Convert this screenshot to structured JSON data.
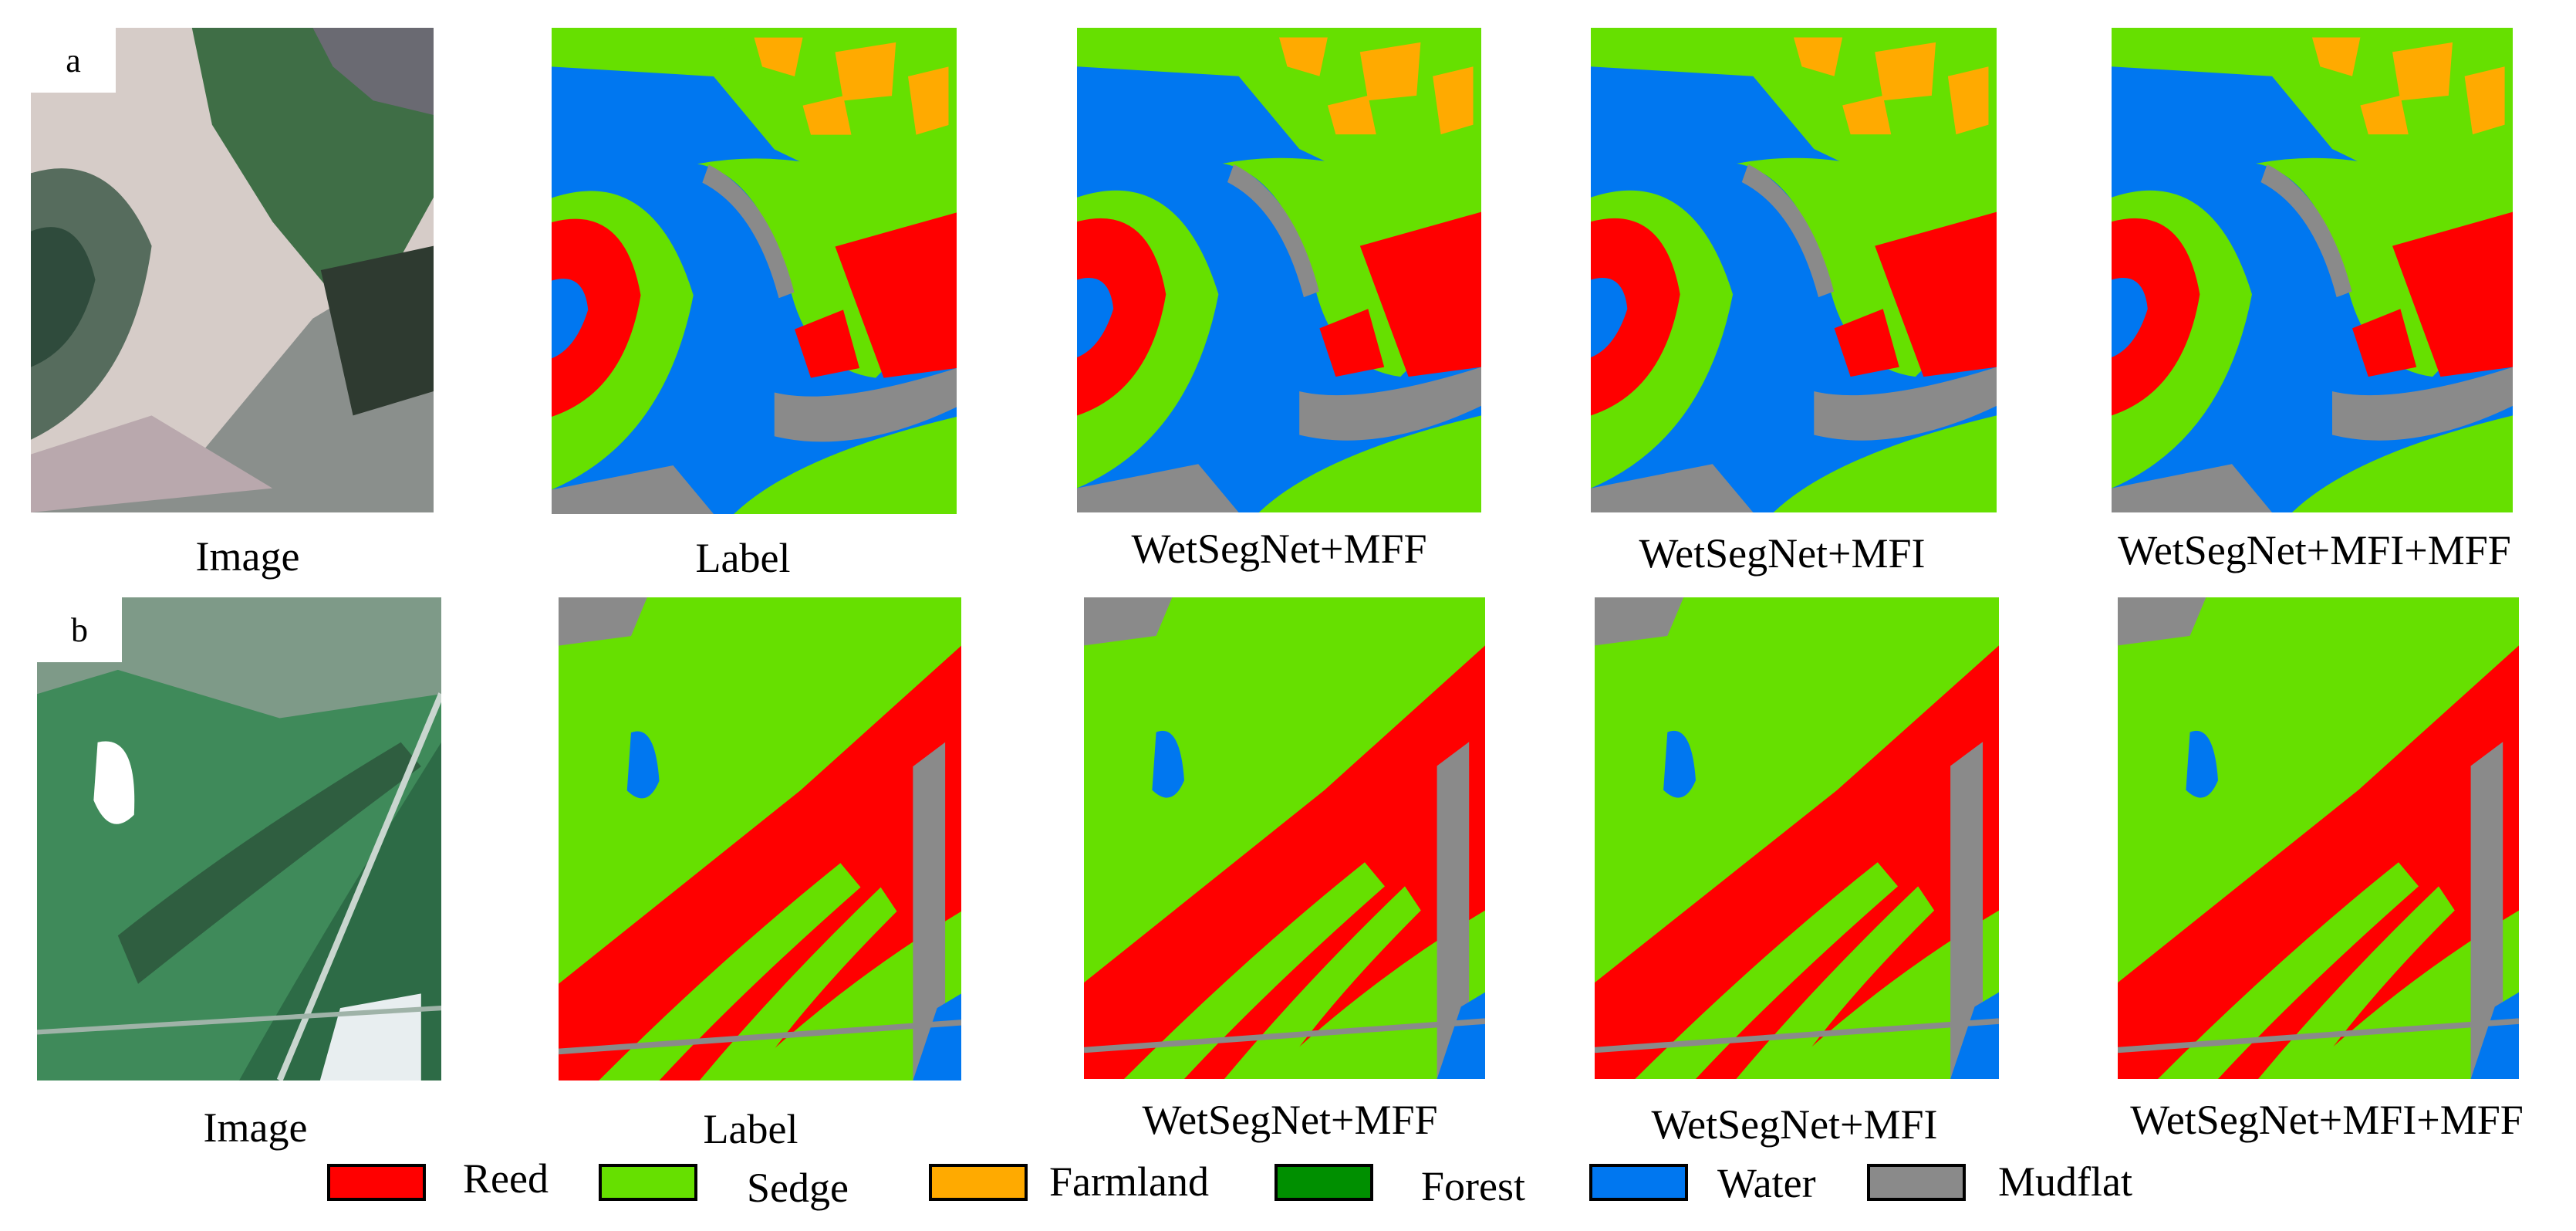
{
  "rows": [
    {
      "tag": "a",
      "captions": [
        "Image",
        "Label",
        "WetSegNet+MFF",
        "WetSegNet+MFI",
        "WetSegNet+MFI+MFF"
      ]
    },
    {
      "tag": "b",
      "captions": [
        "Image",
        "Label",
        "WetSegNet+MFF",
        "WetSegNet+MFI",
        "WetSegNet+MFI+MFF"
      ]
    }
  ],
  "legend": [
    {
      "label": "Reed",
      "color": "#ff0000"
    },
    {
      "label": "Sedge",
      "color": "#66e000"
    },
    {
      "label": "Farmland",
      "color": "#ffaa00"
    },
    {
      "label": "Forest",
      "color": "#008f00"
    },
    {
      "label": "Water",
      "color": "#0077f0"
    },
    {
      "label": "Mudflat",
      "color": "#8a8a8a"
    }
  ],
  "colors": {
    "reed": "#ff0000",
    "sedge": "#66e000",
    "farmland": "#ffaa00",
    "forest": "#008f00",
    "water": "#0077f0",
    "mudflat": "#8a8a8a",
    "photo_sand": "#d9cfca",
    "photo_green": "#3c7a4a",
    "photo_dark": "#2a4a3a"
  }
}
